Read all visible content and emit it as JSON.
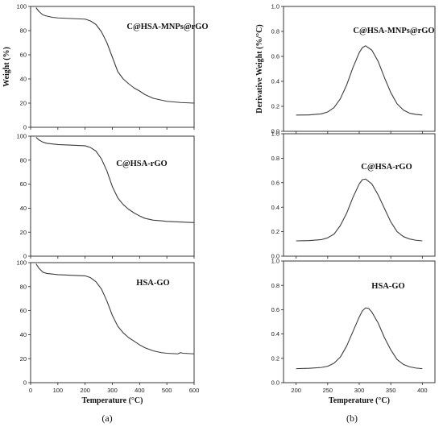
{
  "figure": {
    "left_label": "(a)",
    "right_label": "(b)"
  },
  "chart_data": [
    {
      "type": "line",
      "panel": "a",
      "title": "C@HSA-MNPs@rGO",
      "xlabel": "",
      "ylabel": "Weight (%)",
      "xlim": [
        0,
        600
      ],
      "ylim": [
        0,
        100
      ],
      "xticks": [],
      "yticks": [
        0,
        20,
        40,
        60,
        80,
        100
      ],
      "series": [
        {
          "x": [
            20,
            30,
            45,
            60,
            80,
            100,
            150,
            200,
            220,
            240,
            260,
            280,
            300,
            320,
            340,
            360,
            380,
            400,
            420,
            450,
            480,
            500,
            550,
            600
          ],
          "y": [
            99,
            96,
            93,
            92,
            91,
            90.5,
            90,
            89.5,
            88,
            85,
            79,
            70,
            58,
            46,
            40,
            36,
            32.5,
            30,
            27,
            24,
            22.5,
            21.5,
            20.5,
            20
          ]
        }
      ]
    },
    {
      "type": "line",
      "panel": "a",
      "title": "C@HSA-rGO",
      "xlabel": "",
      "ylabel": "",
      "xlim": [
        0,
        600
      ],
      "ylim": [
        0,
        100
      ],
      "xticks": [],
      "yticks": [
        0,
        20,
        40,
        60,
        80,
        100
      ],
      "series": [
        {
          "x": [
            20,
            30,
            45,
            60,
            80,
            100,
            150,
            200,
            220,
            240,
            260,
            280,
            300,
            320,
            340,
            360,
            380,
            400,
            420,
            450,
            480,
            500,
            550,
            600
          ],
          "y": [
            99,
            97,
            95,
            94,
            93.5,
            93,
            92.5,
            92,
            90.5,
            87.5,
            81,
            71,
            58,
            48.5,
            43,
            39,
            36,
            33.5,
            31.5,
            30,
            29.5,
            29,
            28.5,
            28
          ]
        }
      ]
    },
    {
      "type": "line",
      "panel": "a",
      "title": "HSA-GO",
      "xlabel": "Temperature (°C)",
      "ylabel": "",
      "xlim": [
        0,
        600
      ],
      "ylim": [
        0,
        100
      ],
      "xticks": [
        0,
        100,
        200,
        300,
        400,
        500,
        600
      ],
      "yticks": [
        0,
        20,
        40,
        60,
        80,
        100
      ],
      "series": [
        {
          "x": [
            20,
            30,
            45,
            60,
            80,
            100,
            150,
            200,
            220,
            240,
            260,
            280,
            300,
            320,
            340,
            360,
            380,
            400,
            420,
            450,
            480,
            500,
            540,
            550,
            560,
            600
          ],
          "y": [
            99,
            95.5,
            92,
            91,
            90.5,
            90,
            89.5,
            89,
            87.5,
            84,
            78,
            68,
            56,
            47,
            41.5,
            37.5,
            34.5,
            31.5,
            29,
            26.5,
            25,
            24.5,
            24,
            25,
            24.5,
            24
          ]
        }
      ]
    },
    {
      "type": "line",
      "panel": "b",
      "title": "C@HSA-MNPs@rGO",
      "xlabel": "",
      "ylabel": "Derivative Weight (%/°C)",
      "xlim": [
        180,
        420
      ],
      "ylim": [
        0,
        1.0
      ],
      "xticks": [],
      "yticks": [
        0.0,
        0.2,
        0.4,
        0.6,
        0.8,
        1.0
      ],
      "series": [
        {
          "x": [
            200,
            220,
            240,
            250,
            260,
            270,
            280,
            290,
            300,
            305,
            310,
            320,
            330,
            340,
            350,
            360,
            370,
            380,
            390,
            400
          ],
          "y": [
            0.13,
            0.131,
            0.14,
            0.155,
            0.19,
            0.26,
            0.37,
            0.51,
            0.63,
            0.67,
            0.685,
            0.65,
            0.56,
            0.43,
            0.31,
            0.22,
            0.17,
            0.145,
            0.135,
            0.13
          ]
        }
      ]
    },
    {
      "type": "line",
      "panel": "b",
      "title": "C@HSA-rGO",
      "xlabel": "",
      "ylabel": "",
      "xlim": [
        180,
        420
      ],
      "ylim": [
        0,
        1.0
      ],
      "xticks": [],
      "yticks": [
        0.0,
        0.2,
        0.4,
        0.6,
        0.8,
        1.0
      ],
      "series": [
        {
          "x": [
            200,
            220,
            240,
            250,
            260,
            270,
            280,
            290,
            300,
            305,
            310,
            320,
            330,
            340,
            350,
            360,
            370,
            380,
            390,
            400
          ],
          "y": [
            0.125,
            0.127,
            0.135,
            0.15,
            0.18,
            0.25,
            0.35,
            0.48,
            0.59,
            0.625,
            0.63,
            0.59,
            0.5,
            0.39,
            0.28,
            0.2,
            0.16,
            0.14,
            0.13,
            0.125
          ]
        }
      ]
    },
    {
      "type": "line",
      "panel": "b",
      "title": "HSA-GO",
      "xlabel": "Temperature (°C)",
      "ylabel": "",
      "xlim": [
        180,
        420
      ],
      "ylim": [
        0,
        1.0
      ],
      "xticks": [
        200,
        250,
        300,
        350,
        400
      ],
      "yticks": [
        0.0,
        0.2,
        0.4,
        0.6,
        0.8,
        1.0
      ],
      "series": [
        {
          "x": [
            200,
            220,
            240,
            250,
            260,
            270,
            280,
            290,
            300,
            305,
            310,
            315,
            320,
            330,
            340,
            350,
            360,
            370,
            380,
            390,
            400
          ],
          "y": [
            0.115,
            0.118,
            0.125,
            0.135,
            0.16,
            0.21,
            0.3,
            0.42,
            0.54,
            0.59,
            0.615,
            0.61,
            0.58,
            0.49,
            0.37,
            0.27,
            0.19,
            0.15,
            0.13,
            0.12,
            0.115
          ]
        }
      ]
    }
  ]
}
